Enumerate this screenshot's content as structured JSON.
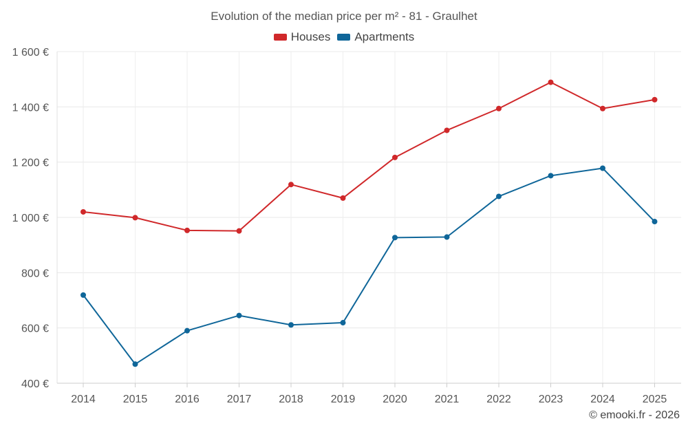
{
  "chart_data": {
    "type": "line",
    "title": "Evolution of the median price per m² - 81 - Graulhet",
    "categories": [
      "2014",
      "2015",
      "2016",
      "2017",
      "2018",
      "2019",
      "2020",
      "2021",
      "2022",
      "2023",
      "2024",
      "2025"
    ],
    "series": [
      {
        "name": "Houses",
        "color": "#d0282a",
        "values": [
          1020,
          999,
          953,
          951,
          1119,
          1070,
          1217,
          1315,
          1394,
          1489,
          1394,
          1426
        ]
      },
      {
        "name": "Apartments",
        "color": "#0f6699",
        "values": [
          719,
          469,
          590,
          645,
          611,
          619,
          927,
          929,
          1076,
          1151,
          1178,
          985
        ]
      }
    ],
    "ylim": [
      400,
      1600
    ],
    "yticks": [
      400,
      600,
      800,
      1000,
      1200,
      1400,
      1600
    ],
    "ytick_labels": [
      "400 €",
      "600 €",
      "800 €",
      "1 000 €",
      "1 200 €",
      "1 400 €",
      "1 600 €"
    ],
    "xlabel": "",
    "ylabel": "",
    "grid": true,
    "legend_position": "top-center"
  },
  "watermark": "© emooki.fr - 2026"
}
